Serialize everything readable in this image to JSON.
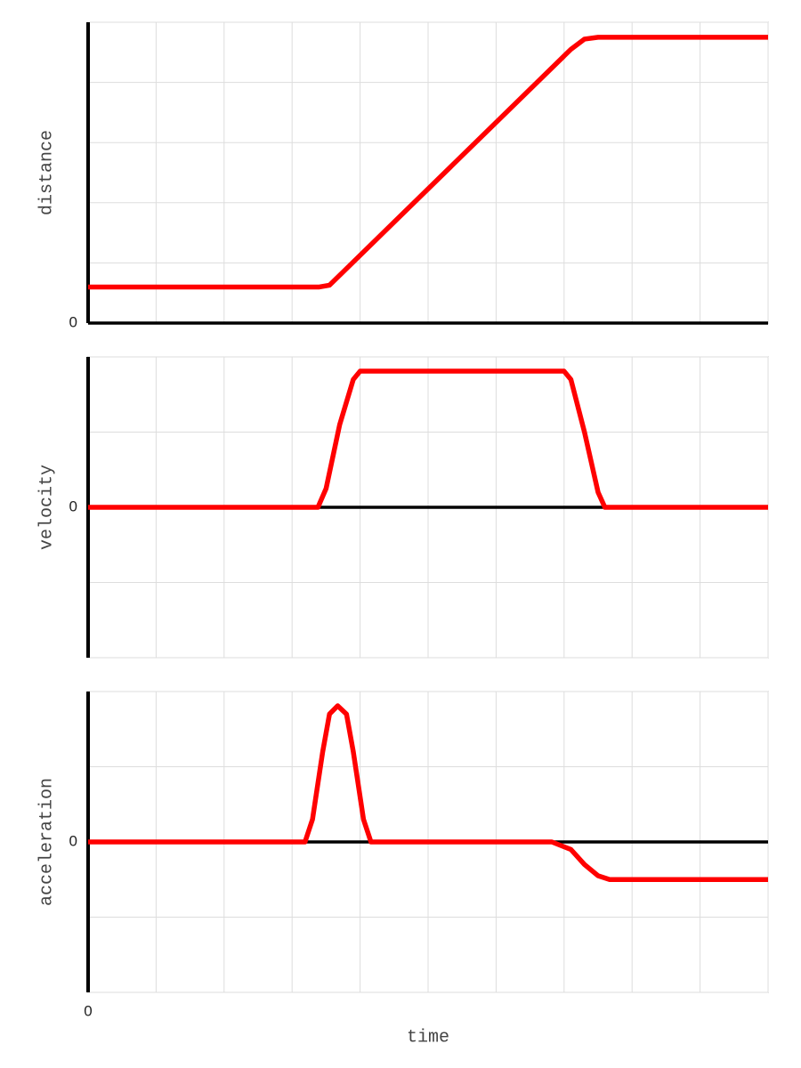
{
  "chart_data": [
    {
      "type": "line",
      "ylabel": "distance",
      "xlim": [
        0,
        10
      ],
      "ylim": [
        0,
        5
      ],
      "xticks": [],
      "yticks": [
        0
      ],
      "xgrid": [
        0,
        1,
        2,
        3,
        4,
        5,
        6,
        7,
        8,
        9,
        10
      ],
      "ygrid": [
        0,
        1,
        2,
        3,
        4,
        5
      ],
      "color": "#ff0000",
      "x": [
        0,
        3.4,
        3.55,
        3.75,
        7.1,
        7.3,
        7.5,
        10
      ],
      "values": [
        0.6,
        0.6,
        0.63,
        0.85,
        4.55,
        4.72,
        4.75,
        4.75
      ]
    },
    {
      "type": "line",
      "ylabel": "velocity",
      "xlim": [
        0,
        10
      ],
      "ylim": [
        -2,
        2
      ],
      "xticks": [],
      "yticks": [
        0
      ],
      "xgrid": [
        0,
        1,
        2,
        3,
        4,
        5,
        6,
        7,
        8,
        9,
        10
      ],
      "ygrid": [
        -2,
        -1,
        0,
        1,
        2
      ],
      "color": "#ff0000",
      "x": [
        0,
        3.38,
        3.5,
        3.7,
        3.9,
        4.0,
        7.0,
        7.1,
        7.3,
        7.5,
        7.6,
        10
      ],
      "values": [
        0,
        0,
        0.25,
        1.1,
        1.7,
        1.81,
        1.81,
        1.7,
        1.0,
        0.2,
        0,
        0
      ]
    },
    {
      "type": "line",
      "ylabel": "acceleration",
      "xlabel": "time",
      "xlim": [
        0,
        10
      ],
      "ylim": [
        -2,
        2
      ],
      "xticks": [
        0
      ],
      "yticks": [
        0
      ],
      "xgrid": [
        0,
        1,
        2,
        3,
        4,
        5,
        6,
        7,
        8,
        9,
        10
      ],
      "ygrid": [
        -2,
        -1,
        0,
        1,
        2
      ],
      "color": "#ff0000",
      "x": [
        0,
        3.19,
        3.3,
        3.45,
        3.55,
        3.67,
        3.8,
        3.9,
        4.05,
        4.16,
        6.82,
        7.1,
        7.3,
        7.5,
        7.67,
        10
      ],
      "values": [
        0,
        0,
        0.3,
        1.2,
        1.7,
        1.81,
        1.7,
        1.2,
        0.3,
        0,
        0,
        -0.1,
        -0.3,
        -0.45,
        -0.5,
        -0.5
      ]
    }
  ]
}
